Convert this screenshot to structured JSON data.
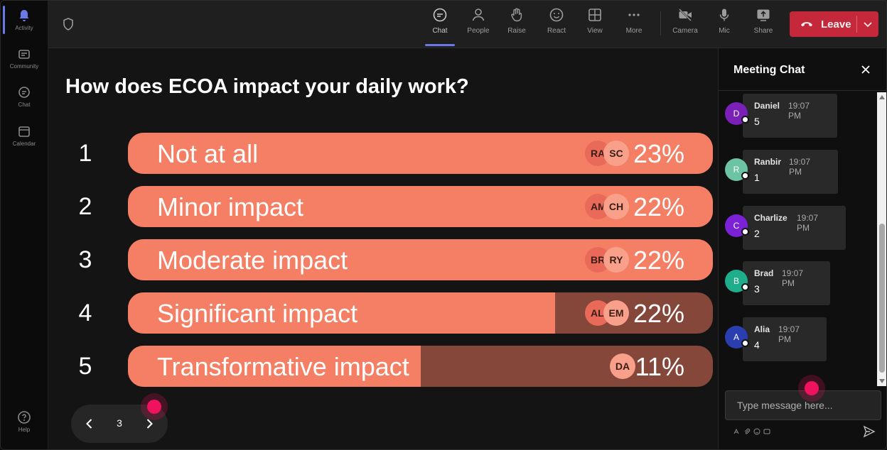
{
  "rail": {
    "items": [
      {
        "label": "Activity",
        "icon": "bell-icon"
      },
      {
        "label": "Community",
        "icon": "community-icon"
      },
      {
        "label": "Chat",
        "icon": "chat-icon"
      },
      {
        "label": "Calendar",
        "icon": "calendar-icon"
      },
      {
        "label": "Help",
        "icon": "help-icon"
      }
    ]
  },
  "toolbar": {
    "chat": "Chat",
    "people": "People",
    "raise": "Raise",
    "react": "React",
    "view": "View",
    "more": "More",
    "camera": "Camera",
    "mic": "Mic",
    "share": "Share",
    "leave": "Leave"
  },
  "poll": {
    "question": "How does ECOA impact your daily work?",
    "options": [
      {
        "num": "1",
        "label": "Not at all",
        "pct": "23%",
        "fill": 1.0,
        "avatars": [
          "RA",
          "SC"
        ]
      },
      {
        "num": "2",
        "label": "Minor impact",
        "pct": "22%",
        "fill": 1.0,
        "avatars": [
          "AM",
          "CH"
        ]
      },
      {
        "num": "3",
        "label": "Moderate impact",
        "pct": "22%",
        "fill": 1.0,
        "avatars": [
          "BR",
          "RY"
        ]
      },
      {
        "num": "4",
        "label": "Significant impact",
        "pct": "22%",
        "fill": 0.73,
        "avatars": [
          "AL",
          "EM"
        ]
      },
      {
        "num": "5",
        "label": "Transformative impact",
        "pct": "11%",
        "fill": 0.5,
        "avatars": [
          "DA"
        ]
      }
    ],
    "page": "3"
  },
  "chat": {
    "title": "Meeting Chat",
    "messages": [
      {
        "initial": "D",
        "name": "Daniel",
        "time": "19:07 PM",
        "text": "5",
        "color": "#7a1fb8"
      },
      {
        "initial": "R",
        "name": "Ranbir",
        "time": "19:07 PM",
        "text": "1",
        "color": "#6cc4a4"
      },
      {
        "initial": "C",
        "name": "Charlize",
        "time": "19:07 PM",
        "text": "2",
        "color": "#7b22d6"
      },
      {
        "initial": "B",
        "name": "Brad",
        "time": "19:07 PM",
        "text": "3",
        "color": "#1fae8c"
      },
      {
        "initial": "A",
        "name": "Alia",
        "time": "19:07 PM",
        "text": "4",
        "color": "#2b3eb0"
      }
    ],
    "input_placeholder": "Type message here..."
  },
  "colors": {
    "accent": "#6b79e8",
    "bar": "#f47f64",
    "bar_track": "#85473a",
    "leave": "#c4283a",
    "cursor": "#f0115f"
  }
}
